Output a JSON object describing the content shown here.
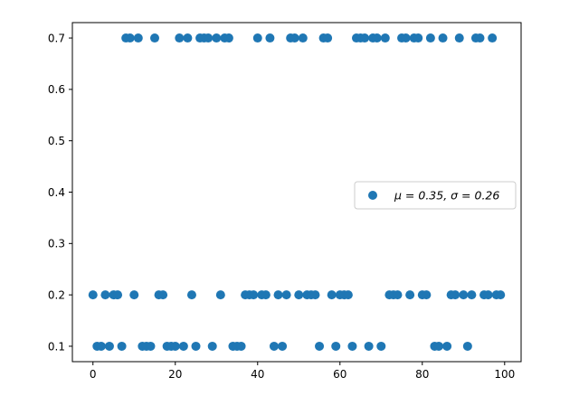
{
  "chart_data": {
    "type": "scatter",
    "title": "",
    "xlabel": "",
    "ylabel": "",
    "xlim": [
      -5,
      104
    ],
    "ylim": [
      0.07,
      0.73
    ],
    "xticks": [
      0,
      20,
      40,
      60,
      80,
      100
    ],
    "yticks": [
      0.1,
      0.2,
      0.3,
      0.4,
      0.5,
      0.6,
      0.7
    ],
    "xtick_labels": [
      "0",
      "20",
      "40",
      "60",
      "80",
      "100"
    ],
    "ytick_labels": [
      "0.1",
      "0.2",
      "0.3",
      "0.4",
      "0.5",
      "0.6",
      "0.7"
    ],
    "grid": false,
    "legend_position": "center-right",
    "marker_color": "#1f77b4",
    "series": [
      {
        "name": "μ = 0.35,  σ = 0.26",
        "points": [
          [
            0,
            0.2
          ],
          [
            1,
            0.1
          ],
          [
            2,
            0.1
          ],
          [
            3,
            0.2
          ],
          [
            4,
            0.1
          ],
          [
            5,
            0.2
          ],
          [
            6,
            0.2
          ],
          [
            7,
            0.1
          ],
          [
            8,
            0.7
          ],
          [
            9,
            0.7
          ],
          [
            10,
            0.2
          ],
          [
            11,
            0.7
          ],
          [
            12,
            0.1
          ],
          [
            13,
            0.1
          ],
          [
            14,
            0.1
          ],
          [
            15,
            0.7
          ],
          [
            16,
            0.2
          ],
          [
            17,
            0.2
          ],
          [
            18,
            0.1
          ],
          [
            19,
            0.1
          ],
          [
            20,
            0.1
          ],
          [
            21,
            0.7
          ],
          [
            22,
            0.1
          ],
          [
            23,
            0.7
          ],
          [
            24,
            0.2
          ],
          [
            25,
            0.1
          ],
          [
            26,
            0.7
          ],
          [
            27,
            0.7
          ],
          [
            28,
            0.7
          ],
          [
            29,
            0.1
          ],
          [
            30,
            0.7
          ],
          [
            31,
            0.2
          ],
          [
            32,
            0.7
          ],
          [
            33,
            0.7
          ],
          [
            34,
            0.1
          ],
          [
            35,
            0.1
          ],
          [
            36,
            0.1
          ],
          [
            37,
            0.2
          ],
          [
            38,
            0.2
          ],
          [
            39,
            0.2
          ],
          [
            40,
            0.7
          ],
          [
            41,
            0.2
          ],
          [
            42,
            0.2
          ],
          [
            43,
            0.7
          ],
          [
            44,
            0.1
          ],
          [
            45,
            0.2
          ],
          [
            46,
            0.1
          ],
          [
            47,
            0.2
          ],
          [
            48,
            0.7
          ],
          [
            49,
            0.7
          ],
          [
            50,
            0.2
          ],
          [
            51,
            0.7
          ],
          [
            52,
            0.2
          ],
          [
            53,
            0.2
          ],
          [
            54,
            0.2
          ],
          [
            55,
            0.1
          ],
          [
            56,
            0.7
          ],
          [
            57,
            0.7
          ],
          [
            58,
            0.2
          ],
          [
            59,
            0.1
          ],
          [
            60,
            0.2
          ],
          [
            61,
            0.2
          ],
          [
            62,
            0.2
          ],
          [
            63,
            0.1
          ],
          [
            64,
            0.7
          ],
          [
            65,
            0.7
          ],
          [
            66,
            0.7
          ],
          [
            67,
            0.1
          ],
          [
            68,
            0.7
          ],
          [
            69,
            0.7
          ],
          [
            70,
            0.1
          ],
          [
            71,
            0.7
          ],
          [
            72,
            0.2
          ],
          [
            73,
            0.2
          ],
          [
            74,
            0.2
          ],
          [
            75,
            0.7
          ],
          [
            76,
            0.7
          ],
          [
            77,
            0.2
          ],
          [
            78,
            0.7
          ],
          [
            79,
            0.7
          ],
          [
            80,
            0.2
          ],
          [
            81,
            0.2
          ],
          [
            82,
            0.7
          ],
          [
            83,
            0.1
          ],
          [
            84,
            0.1
          ],
          [
            85,
            0.7
          ],
          [
            86,
            0.1
          ],
          [
            87,
            0.2
          ],
          [
            88,
            0.2
          ],
          [
            89,
            0.7
          ],
          [
            90,
            0.2
          ],
          [
            91,
            0.1
          ],
          [
            92,
            0.2
          ],
          [
            93,
            0.7
          ],
          [
            94,
            0.7
          ],
          [
            95,
            0.2
          ],
          [
            96,
            0.2
          ],
          [
            97,
            0.7
          ],
          [
            98,
            0.2
          ],
          [
            99,
            0.2
          ]
        ]
      }
    ]
  }
}
